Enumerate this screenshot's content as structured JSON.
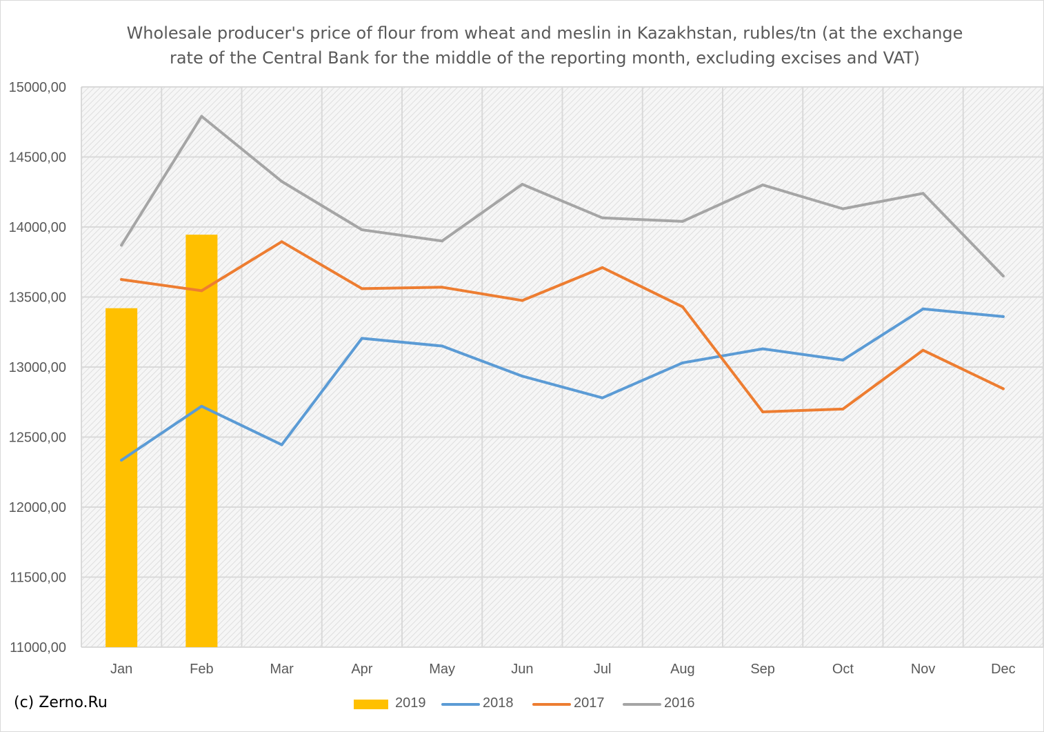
{
  "chart_data": {
    "type": "bar+line",
    "title": "Wholesale producer's price of flour from wheat and meslin in Kazakhstan, rubles/tn (at the exchange rate of the Central Bank for the middle of the reporting month, excluding excises and VAT)",
    "xlabel": "",
    "ylabel": "",
    "categories": [
      "Jan",
      "Feb",
      "Mar",
      "Apr",
      "May",
      "Jun",
      "Jul",
      "Aug",
      "Sep",
      "Oct",
      "Nov",
      "Dec"
    ],
    "y_ticks": [
      "11000,00",
      "11500,00",
      "12000,00",
      "12500,00",
      "13000,00",
      "13500,00",
      "14000,00",
      "14500,00",
      "15000,00"
    ],
    "ylim": [
      11000,
      15000
    ],
    "grid": true,
    "legend_position": "bottom",
    "series": [
      {
        "name": "2019",
        "type": "bar",
        "color": "#ffc000",
        "values": [
          13420,
          13945,
          null,
          null,
          null,
          null,
          null,
          null,
          null,
          null,
          null,
          null
        ]
      },
      {
        "name": "2018",
        "type": "line",
        "color": "#5b9bd5",
        "values": [
          12335,
          12720,
          12445,
          13205,
          13150,
          12935,
          12780,
          13030,
          13130,
          13050,
          13415,
          13360
        ]
      },
      {
        "name": "2017",
        "type": "line",
        "color": "#ed7d31",
        "values": [
          13625,
          13545,
          13895,
          13560,
          13570,
          13475,
          13710,
          13430,
          12680,
          12700,
          13120,
          12845
        ]
      },
      {
        "name": "2016",
        "type": "line",
        "color": "#a5a5a5",
        "values": [
          13870,
          14790,
          14325,
          13980,
          13900,
          14305,
          14065,
          14040,
          14300,
          14130,
          14240,
          13650
        ]
      }
    ]
  },
  "copyright": "(c) Zerno.Ru"
}
